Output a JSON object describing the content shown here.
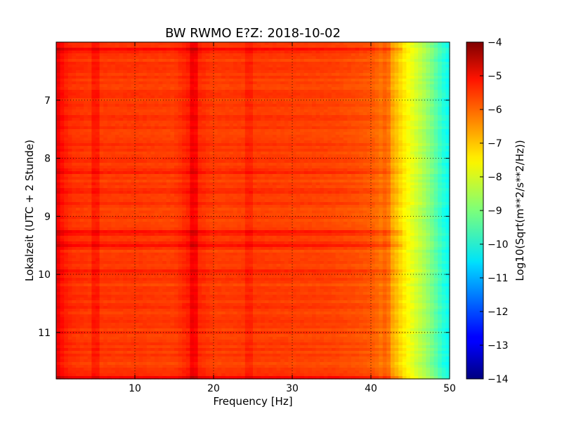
{
  "chart_data": {
    "type": "heatmap",
    "title": "BW RWMO E?Z: 2018-10-02",
    "xlabel": "Frequency [Hz]",
    "ylabel": "Lokalzeit (UTC + 2 Stunde)",
    "xlim": [
      0,
      50
    ],
    "ylim": [
      6,
      11.8
    ],
    "y_inverted": true,
    "grid": true,
    "x_ticks": [
      10,
      20,
      30,
      40,
      50
    ],
    "y_ticks": [
      7,
      8,
      9,
      10,
      11
    ],
    "colormap": "jet",
    "colorbar": {
      "label": "Log10(Sqrt(m**2/s**2/Hz))",
      "range": [
        -14,
        -4
      ],
      "ticks": [
        -4,
        -5,
        -6,
        -7,
        -8,
        -9,
        -10,
        -11,
        -12,
        -13,
        -14
      ]
    },
    "spectral_profile": {
      "frequency_hz": [
        0,
        0.5,
        1,
        2,
        5,
        10,
        15,
        17,
        20,
        25,
        30,
        35,
        38,
        40,
        41,
        42,
        43,
        44,
        45,
        46,
        47,
        48,
        49,
        50
      ],
      "log10_amplitude": [
        -5.0,
        -5.3,
        -5.5,
        -5.7,
        -5.8,
        -5.8,
        -5.85,
        -5.5,
        -5.85,
        -5.8,
        -5.85,
        -5.9,
        -6.0,
        -6.1,
        -6.3,
        -6.6,
        -7.0,
        -7.5,
        -7.9,
        -8.3,
        -8.7,
        -9.2,
        -9.8,
        -10.2
      ]
    },
    "time_bands": [
      {
        "time_h": 6.12,
        "log10_amplitude_offset": 0.5
      },
      {
        "time_h": 8.25,
        "log10_amplitude_offset": 0.25
      },
      {
        "time_h": 8.58,
        "log10_amplitude_offset": 0.3
      },
      {
        "time_h": 9.27,
        "log10_amplitude_offset": 0.6
      },
      {
        "time_h": 9.5,
        "log10_amplitude_offset": 0.45
      },
      {
        "time_h": 9.97,
        "log10_amplitude_offset": 0.3
      },
      {
        "time_h": 11.78,
        "log10_amplitude_offset": 0.5
      }
    ],
    "frequency_lines": [
      {
        "frequency_hz": 5.2,
        "log10_amplitude_offset": 0.3
      },
      {
        "frequency_hz": 17.3,
        "log10_amplitude_offset": 0.35
      },
      {
        "frequency_hz": 24.5,
        "log10_amplitude_offset": 0.2
      },
      {
        "frequency_hz": 41.8,
        "log10_amplitude_offset": 0.3
      }
    ]
  }
}
